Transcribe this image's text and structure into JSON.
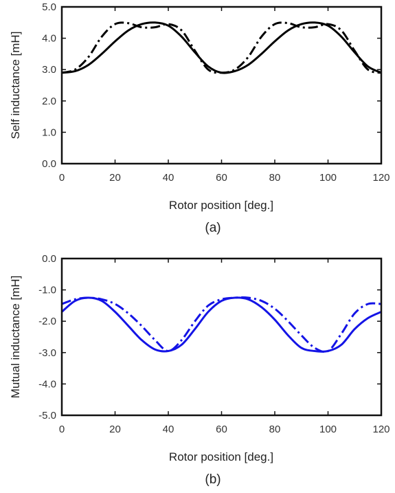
{
  "captions": [
    "(a)",
    "(b)"
  ],
  "chart_data": [
    {
      "type": "line",
      "xlabel": "Rotor position [deg.]",
      "ylabel": "Self inductance [mH]",
      "xlim": [
        0,
        120
      ],
      "ylim": [
        0.0,
        5.0
      ],
      "xticks": [
        "0",
        "20",
        "40",
        "60",
        "80",
        "100",
        "120"
      ],
      "yticks": [
        "0.0",
        "1.0",
        "2.0",
        "3.0",
        "4.0",
        "5.0"
      ],
      "grid": false,
      "series": [
        {
          "style": "solid",
          "color": "#000000",
          "x": [
            0,
            5,
            10,
            15,
            20,
            25,
            30,
            35,
            40,
            45,
            50,
            55,
            60,
            65,
            70,
            75,
            80,
            85,
            90,
            95,
            100,
            105,
            110,
            115,
            120
          ],
          "values": [
            2.9,
            2.95,
            3.15,
            3.5,
            3.9,
            4.25,
            4.45,
            4.5,
            4.4,
            4.05,
            3.55,
            3.1,
            2.9,
            2.95,
            3.15,
            3.5,
            3.9,
            4.25,
            4.45,
            4.5,
            4.4,
            4.05,
            3.55,
            3.1,
            2.9
          ]
        },
        {
          "style": "dashdot",
          "color": "#000000",
          "x": [
            0,
            5,
            10,
            15,
            20,
            25,
            30,
            35,
            40,
            45,
            50,
            55,
            60,
            65,
            70,
            75,
            80,
            85,
            90,
            95,
            100,
            105,
            110,
            115,
            120
          ],
          "values": [
            2.9,
            3.0,
            3.4,
            4.05,
            4.45,
            4.48,
            4.35,
            4.35,
            4.45,
            4.25,
            3.6,
            3.0,
            2.9,
            3.0,
            3.4,
            4.05,
            4.45,
            4.48,
            4.35,
            4.35,
            4.45,
            4.25,
            3.6,
            3.0,
            2.9
          ]
        }
      ]
    },
    {
      "type": "line",
      "xlabel": "Rotor position [deg.]",
      "ylabel": "Mutual inductance [mH]",
      "xlim": [
        0,
        120
      ],
      "ylim": [
        -5.0,
        0.0
      ],
      "xticks": [
        "0",
        "20",
        "40",
        "60",
        "80",
        "100",
        "120"
      ],
      "yticks": [
        "-5.0",
        "-4.0",
        "-3.0",
        "-2.0",
        "-1.0",
        "0.0"
      ],
      "grid": false,
      "series": [
        {
          "style": "solid",
          "color": "#1414e6",
          "x": [
            0,
            5,
            10,
            15,
            20,
            25,
            30,
            35,
            40,
            45,
            50,
            55,
            60,
            65,
            70,
            75,
            80,
            85,
            90,
            95,
            100,
            105,
            110,
            115,
            120
          ],
          "values": [
            -1.7,
            -1.35,
            -1.25,
            -1.35,
            -1.7,
            -2.15,
            -2.6,
            -2.9,
            -2.95,
            -2.75,
            -2.25,
            -1.7,
            -1.35,
            -1.25,
            -1.3,
            -1.55,
            -1.95,
            -2.45,
            -2.85,
            -2.95,
            -2.95,
            -2.75,
            -2.25,
            -1.9,
            -1.7
          ]
        },
        {
          "style": "dashdot",
          "color": "#1414e6",
          "x": [
            0,
            5,
            10,
            15,
            20,
            25,
            30,
            35,
            40,
            45,
            50,
            55,
            60,
            65,
            70,
            75,
            80,
            85,
            90,
            95,
            100,
            105,
            110,
            115,
            120
          ],
          "values": [
            -1.45,
            -1.3,
            -1.25,
            -1.3,
            -1.45,
            -1.75,
            -2.15,
            -2.6,
            -2.95,
            -2.6,
            -2.0,
            -1.5,
            -1.3,
            -1.25,
            -1.25,
            -1.35,
            -1.6,
            -2.0,
            -2.45,
            -2.85,
            -2.95,
            -2.4,
            -1.75,
            -1.45,
            -1.45
          ]
        }
      ]
    }
  ]
}
